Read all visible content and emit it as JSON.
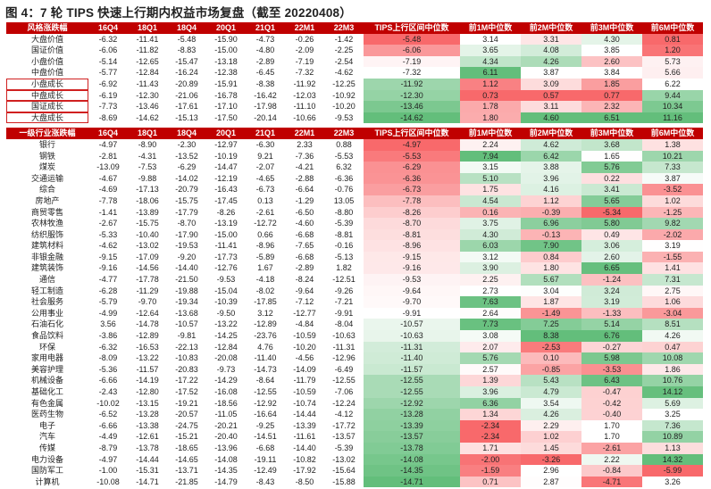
{
  "title": "图 4：7 轮 TIPS 快速上行期内权益市场复盘（截至 20220408）",
  "colors": {
    "header_bg": "#c00000",
    "green": "#63be7b",
    "red": "#f8696b",
    "white": "#ffffff"
  },
  "table1": {
    "headers": [
      "风格涨跌幅",
      "16Q4",
      "18Q1",
      "18Q4",
      "20Q1",
      "21Q1",
      "22M1",
      "22M3",
      "TIPS上行区间中位数",
      "前1M中位数",
      "前2M中位数",
      "前3M中位数",
      "前6M中位数"
    ],
    "rows": [
      [
        "大盘价值",
        "-6.32",
        "-11.41",
        "-5.48",
        "-15.90",
        "-4.73",
        "-0.26",
        "-1.42",
        "-5.48",
        "3.14",
        "3.31",
        "4.30",
        "0.81"
      ],
      [
        "国证价值",
        "-6.06",
        "-11.82",
        "-8.83",
        "-15.00",
        "-4.80",
        "-2.09",
        "-2.25",
        "-6.06",
        "3.65",
        "4.08",
        "3.85",
        "1.20"
      ],
      [
        "小盘价值",
        "-5.14",
        "-12.65",
        "-15.47",
        "-13.18",
        "-2.89",
        "-7.19",
        "-2.54",
        "-7.19",
        "4.34",
        "4.26",
        "2.60",
        "5.73"
      ],
      [
        "中盘价值",
        "-5.77",
        "-12.84",
        "-16.24",
        "-12.38",
        "-6.45",
        "-7.32",
        "-4.62",
        "-7.32",
        "6.11",
        "3.87",
        "3.84",
        "5.66"
      ],
      [
        "小盘成长",
        "-6.92",
        "-11.43",
        "-20.89",
        "-15.91",
        "-8.38",
        "-11.92",
        "-12.25",
        "-11.92",
        "1.12",
        "3.09",
        "1.85",
        "6.22"
      ],
      [
        "中盘成长",
        "-6.19",
        "-12.30",
        "-21.06",
        "-16.78",
        "-16.42",
        "-12.03",
        "-10.92",
        "-12.30",
        "0.73",
        "0.57",
        "0.77",
        "9.44"
      ],
      [
        "国证成长",
        "-7.73",
        "-13.46",
        "-17.61",
        "-17.10",
        "-17.98",
        "-11.10",
        "-10.20",
        "-13.46",
        "1.78",
        "3.11",
        "2.32",
        "10.34"
      ],
      [
        "大盘成长",
        "-8.69",
        "-14.62",
        "-15.13",
        "-17.50",
        "-20.14",
        "-10.66",
        "-9.53",
        "-14.62",
        "1.80",
        "4.60",
        "6.51",
        "11.16"
      ]
    ]
  },
  "table2": {
    "headers": [
      "一级行业涨跌幅",
      "16Q4",
      "18Q1",
      "18Q4",
      "20Q1",
      "21Q1",
      "22M1",
      "22M3",
      "TIPS上行区间中位数",
      "前1M中位数",
      "前2M中位数",
      "前3M中位数",
      "前6M中位数"
    ],
    "rows": [
      [
        "银行",
        "-4.97",
        "-8.90",
        "-2.30",
        "-12.97",
        "-6.30",
        "2.33",
        "0.88",
        "-4.97",
        "2.24",
        "4.62",
        "3.68",
        "1.38"
      ],
      [
        "钢铁",
        "-2.81",
        "-4.31",
        "-13.52",
        "-10.19",
        "9.21",
        "-7.36",
        "-5.53",
        "-5.53",
        "7.94",
        "6.42",
        "1.65",
        "10.21"
      ],
      [
        "煤炭",
        "-13.09",
        "-7.53",
        "-6.29",
        "-14.47",
        "-2.07",
        "-4.21",
        "6.32",
        "-6.29",
        "3.15",
        "3.88",
        "5.76",
        "7.33"
      ],
      [
        "交通运输",
        "-4.67",
        "-9.88",
        "-14.02",
        "-12.19",
        "-4.65",
        "-2.88",
        "-6.36",
        "-6.36",
        "5.10",
        "3.96",
        "0.22",
        "3.87"
      ],
      [
        "综合",
        "-4.69",
        "-17.13",
        "-20.79",
        "-16.43",
        "-6.73",
        "-6.64",
        "-0.76",
        "-6.73",
        "1.75",
        "4.16",
        "3.41",
        "-3.52"
      ],
      [
        "房地产",
        "-7.78",
        "-18.06",
        "-15.75",
        "-17.45",
        "0.13",
        "-1.29",
        "13.05",
        "-7.78",
        "4.54",
        "1.12",
        "5.65",
        "1.02"
      ],
      [
        "商贸零售",
        "-1.41",
        "-13.89",
        "-17.79",
        "-8.26",
        "-2.61",
        "-6.50",
        "-8.80",
        "-8.26",
        "0.16",
        "-0.39",
        "-5.34",
        "-1.25"
      ],
      [
        "农林牧渔",
        "-2.67",
        "-15.75",
        "-8.70",
        "-13.19",
        "-12.72",
        "-4.60",
        "-5.39",
        "-8.70",
        "3.75",
        "6.96",
        "5.80",
        "9.82"
      ],
      [
        "纺织服饰",
        "-5.33",
        "-10.40",
        "-17.90",
        "-15.00",
        "0.66",
        "-6.68",
        "-8.81",
        "-8.81",
        "4.30",
        "-0.13",
        "0.49",
        "-2.02"
      ],
      [
        "建筑材料",
        "-4.62",
        "-13.02",
        "-19.53",
        "-11.41",
        "-8.96",
        "-7.65",
        "-0.16",
        "-8.96",
        "6.03",
        "7.90",
        "3.06",
        "3.19"
      ],
      [
        "非银金融",
        "-9.15",
        "-17.09",
        "-9.20",
        "-17.73",
        "-5.89",
        "-6.68",
        "-5.13",
        "-9.15",
        "3.12",
        "0.84",
        "2.60",
        "-1.55"
      ],
      [
        "建筑装饰",
        "-9.16",
        "-14.56",
        "-14.40",
        "-12.76",
        "1.67",
        "-2.89",
        "1.82",
        "-9.16",
        "3.90",
        "1.80",
        "6.65",
        "1.41"
      ],
      [
        "通信",
        "-4.77",
        "-17.78",
        "-21.50",
        "-9.53",
        "-4.18",
        "-8.24",
        "-12.51",
        "-9.53",
        "2.25",
        "5.67",
        "-1.24",
        "7.31"
      ],
      [
        "轻工制造",
        "-6.28",
        "-11.29",
        "-19.88",
        "-15.04",
        "-8.02",
        "-9.64",
        "-9.26",
        "-9.64",
        "2.73",
        "3.04",
        "3.24",
        "2.75"
      ],
      [
        "社会服务",
        "-5.79",
        "-9.70",
        "-19.34",
        "-10.39",
        "-17.85",
        "-7.12",
        "-7.21",
        "-9.70",
        "7.63",
        "1.87",
        "3.19",
        "1.06"
      ],
      [
        "公用事业",
        "-4.99",
        "-12.64",
        "-13.68",
        "-9.50",
        "3.12",
        "-12.77",
        "-9.91",
        "-9.91",
        "2.64",
        "-1.49",
        "-1.33",
        "-3.04"
      ],
      [
        "石油石化",
        "3.56",
        "-14.78",
        "-10.57",
        "-13.22",
        "-12.89",
        "-4.84",
        "-8.04",
        "-10.57",
        "7.73",
        "7.25",
        "5.14",
        "8.51"
      ],
      [
        "食品饮料",
        "-3.86",
        "-12.89",
        "-9.81",
        "-14.25",
        "-23.76",
        "-10.59",
        "-10.63",
        "-10.63",
        "3.08",
        "8.38",
        "6.76",
        "4.26"
      ],
      [
        "环保",
        "-6.32",
        "-16.53",
        "-22.13",
        "-12.84",
        "4.76",
        "-10.20",
        "-11.31",
        "-11.31",
        "2.07",
        "-2.53",
        "-0.27",
        "0.47"
      ],
      [
        "家用电器",
        "-8.09",
        "-13.22",
        "-10.83",
        "-20.08",
        "-11.40",
        "-4.56",
        "-12.96",
        "-11.40",
        "5.76",
        "0.10",
        "5.98",
        "10.08"
      ],
      [
        "美容护理",
        "-5.36",
        "-11.57",
        "-20.83",
        "-9.73",
        "-14.73",
        "-14.09",
        "-6.49",
        "-11.57",
        "2.57",
        "-0.85",
        "-3.53",
        "1.86"
      ],
      [
        "机械设备",
        "-6.66",
        "-14.19",
        "-17.22",
        "-14.29",
        "-8.64",
        "-11.79",
        "-12.55",
        "-12.55",
        "1.39",
        "5.43",
        "6.43",
        "10.76"
      ],
      [
        "基础化工",
        "-2.43",
        "-12.80",
        "-17.52",
        "-16.08",
        "-12.55",
        "-10.59",
        "-7.06",
        "-12.55",
        "3.96",
        "4.79",
        "-0.47",
        "14.12"
      ],
      [
        "有色金属",
        "-10.02",
        "-13.15",
        "-19.21",
        "-18.56",
        "-12.92",
        "-10.74",
        "-12.24",
        "-12.92",
        "6.36",
        "3.54",
        "-0.42",
        "5.69"
      ],
      [
        "医药生物",
        "-6.52",
        "-13.28",
        "-20.57",
        "-11.05",
        "-16.64",
        "-14.44",
        "-4.12",
        "-13.28",
        "1.34",
        "4.26",
        "-0.40",
        "3.25"
      ],
      [
        "电子",
        "-6.66",
        "-13.38",
        "-24.75",
        "-20.21",
        "-9.25",
        "-13.39",
        "-17.72",
        "-13.39",
        "-2.34",
        "2.29",
        "1.70",
        "7.36"
      ],
      [
        "汽车",
        "-4.49",
        "-12.61",
        "-15.21",
        "-20.40",
        "-14.51",
        "-11.61",
        "-13.57",
        "-13.57",
        "-2.34",
        "1.02",
        "1.70",
        "10.89"
      ],
      [
        "传媒",
        "-8.79",
        "-13.78",
        "-18.65",
        "-13.96",
        "-6.68",
        "-14.40",
        "-5.39",
        "-13.78",
        "1.71",
        "1.45",
        "-2.61",
        "1.13"
      ],
      [
        "电力设备",
        "-4.97",
        "-14.44",
        "-14.65",
        "-14.08",
        "-19.11",
        "-10.82",
        "-13.02",
        "-14.08",
        "-2.00",
        "-3.26",
        "2.22",
        "14.32"
      ],
      [
        "国防军工",
        "-1.00",
        "-15.31",
        "-13.71",
        "-14.35",
        "-12.49",
        "-17.92",
        "-15.64",
        "-14.35",
        "-1.59",
        "2.96",
        "-0.84",
        "-5.99"
      ],
      [
        "计算机",
        "-10.08",
        "-14.71",
        "-21.85",
        "-14.79",
        "-8.43",
        "-8.50",
        "-15.88",
        "-14.71",
        "0.71",
        "2.87",
        "-4.71",
        "3.26"
      ]
    ]
  }
}
